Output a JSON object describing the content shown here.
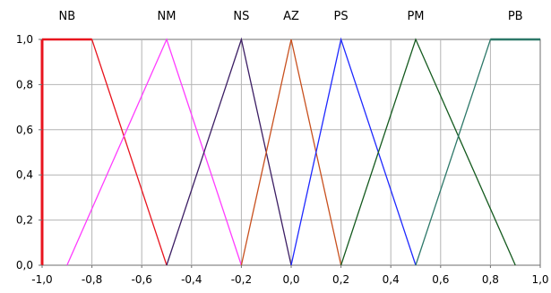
{
  "chart_data": {
    "type": "line",
    "title": "",
    "xlabel": "",
    "ylabel": "",
    "xlim": [
      -1.0,
      1.0
    ],
    "ylim": [
      0.0,
      1.0
    ],
    "grid": true,
    "x_ticks": [
      {
        "value": -1.0,
        "label": "-1,0"
      },
      {
        "value": -0.8,
        "label": "-0,8"
      },
      {
        "value": -0.6,
        "label": "-0,6"
      },
      {
        "value": -0.4,
        "label": "-0,4"
      },
      {
        "value": -0.2,
        "label": "-0,2"
      },
      {
        "value": 0.0,
        "label": "0,0"
      },
      {
        "value": 0.2,
        "label": "0,2"
      },
      {
        "value": 0.4,
        "label": "0,4"
      },
      {
        "value": 0.6,
        "label": "0,6"
      },
      {
        "value": 0.8,
        "label": "0,8"
      },
      {
        "value": 1.0,
        "label": "1,0"
      }
    ],
    "y_ticks": [
      {
        "value": 0.0,
        "label": "0,0"
      },
      {
        "value": 0.2,
        "label": "0,2"
      },
      {
        "value": 0.4,
        "label": "0,4"
      },
      {
        "value": 0.6,
        "label": "0,6"
      },
      {
        "value": 0.8,
        "label": "0,8"
      },
      {
        "value": 1.0,
        "label": "1,0"
      }
    ],
    "series": [
      {
        "name": "NB",
        "color": "#e8141e",
        "points": [
          [
            -1.0,
            0.0
          ],
          [
            -1.0,
            1.0
          ],
          [
            -0.8,
            1.0
          ],
          [
            -0.5,
            0.0
          ]
        ]
      },
      {
        "name": "NM",
        "color": "#ff3cff",
        "points": [
          [
            -0.9,
            0.0
          ],
          [
            -0.5,
            1.0
          ],
          [
            -0.2,
            0.0
          ]
        ]
      },
      {
        "name": "NS",
        "color": "#3c1e64",
        "points": [
          [
            -0.5,
            0.0
          ],
          [
            -0.2,
            1.0
          ],
          [
            0.0,
            0.0
          ]
        ]
      },
      {
        "name": "AZ",
        "color": "#c8501e",
        "points": [
          [
            -0.2,
            0.0
          ],
          [
            0.0,
            1.0
          ],
          [
            0.2,
            0.0
          ]
        ]
      },
      {
        "name": "PS",
        "color": "#1e28ff",
        "points": [
          [
            0.0,
            0.0
          ],
          [
            0.2,
            1.0
          ],
          [
            0.5,
            0.0
          ]
        ]
      },
      {
        "name": "PM",
        "color": "#145a1e",
        "points": [
          [
            0.2,
            0.0
          ],
          [
            0.5,
            1.0
          ],
          [
            0.9,
            0.0
          ]
        ]
      },
      {
        "name": "PB",
        "color": "#2d7869",
        "points": [
          [
            0.5,
            0.0
          ],
          [
            0.8,
            1.0
          ],
          [
            1.0,
            1.0
          ]
        ]
      }
    ],
    "set_label_positions": [
      -0.9,
      -0.5,
      -0.2,
      0.0,
      0.2,
      0.5,
      0.9
    ]
  }
}
